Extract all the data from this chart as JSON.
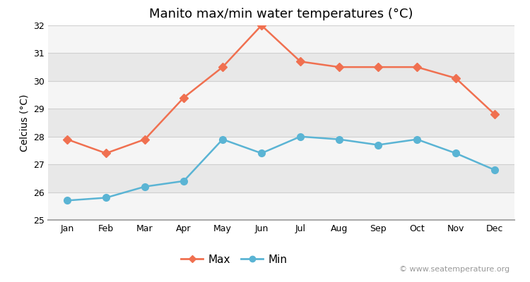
{
  "title": "Manito max/min water temperatures (°C)",
  "ylabel": "Celcius (°C)",
  "months": [
    "Jan",
    "Feb",
    "Mar",
    "Apr",
    "May",
    "Jun",
    "Jul",
    "Aug",
    "Sep",
    "Oct",
    "Nov",
    "Dec"
  ],
  "max_values": [
    27.9,
    27.4,
    27.9,
    29.4,
    30.5,
    32.0,
    30.7,
    30.5,
    30.5,
    30.5,
    30.1,
    28.8
  ],
  "min_values": [
    25.7,
    25.8,
    26.2,
    26.4,
    27.9,
    27.4,
    28.0,
    27.9,
    27.7,
    27.9,
    27.4,
    26.8
  ],
  "max_color": "#f07050",
  "min_color": "#5ab4d4",
  "ylim": [
    25,
    32
  ],
  "yticks": [
    25,
    26,
    27,
    28,
    29,
    30,
    31,
    32
  ],
  "bg_color_light": "#f5f5f5",
  "bg_color_dark": "#e8e8e8",
  "grid_line_color": "#d0d0d0",
  "watermark": "© www.seatemperature.org",
  "legend_labels": [
    "Max",
    "Min"
  ],
  "title_fontsize": 13,
  "label_fontsize": 10,
  "tick_fontsize": 9,
  "watermark_fontsize": 8
}
